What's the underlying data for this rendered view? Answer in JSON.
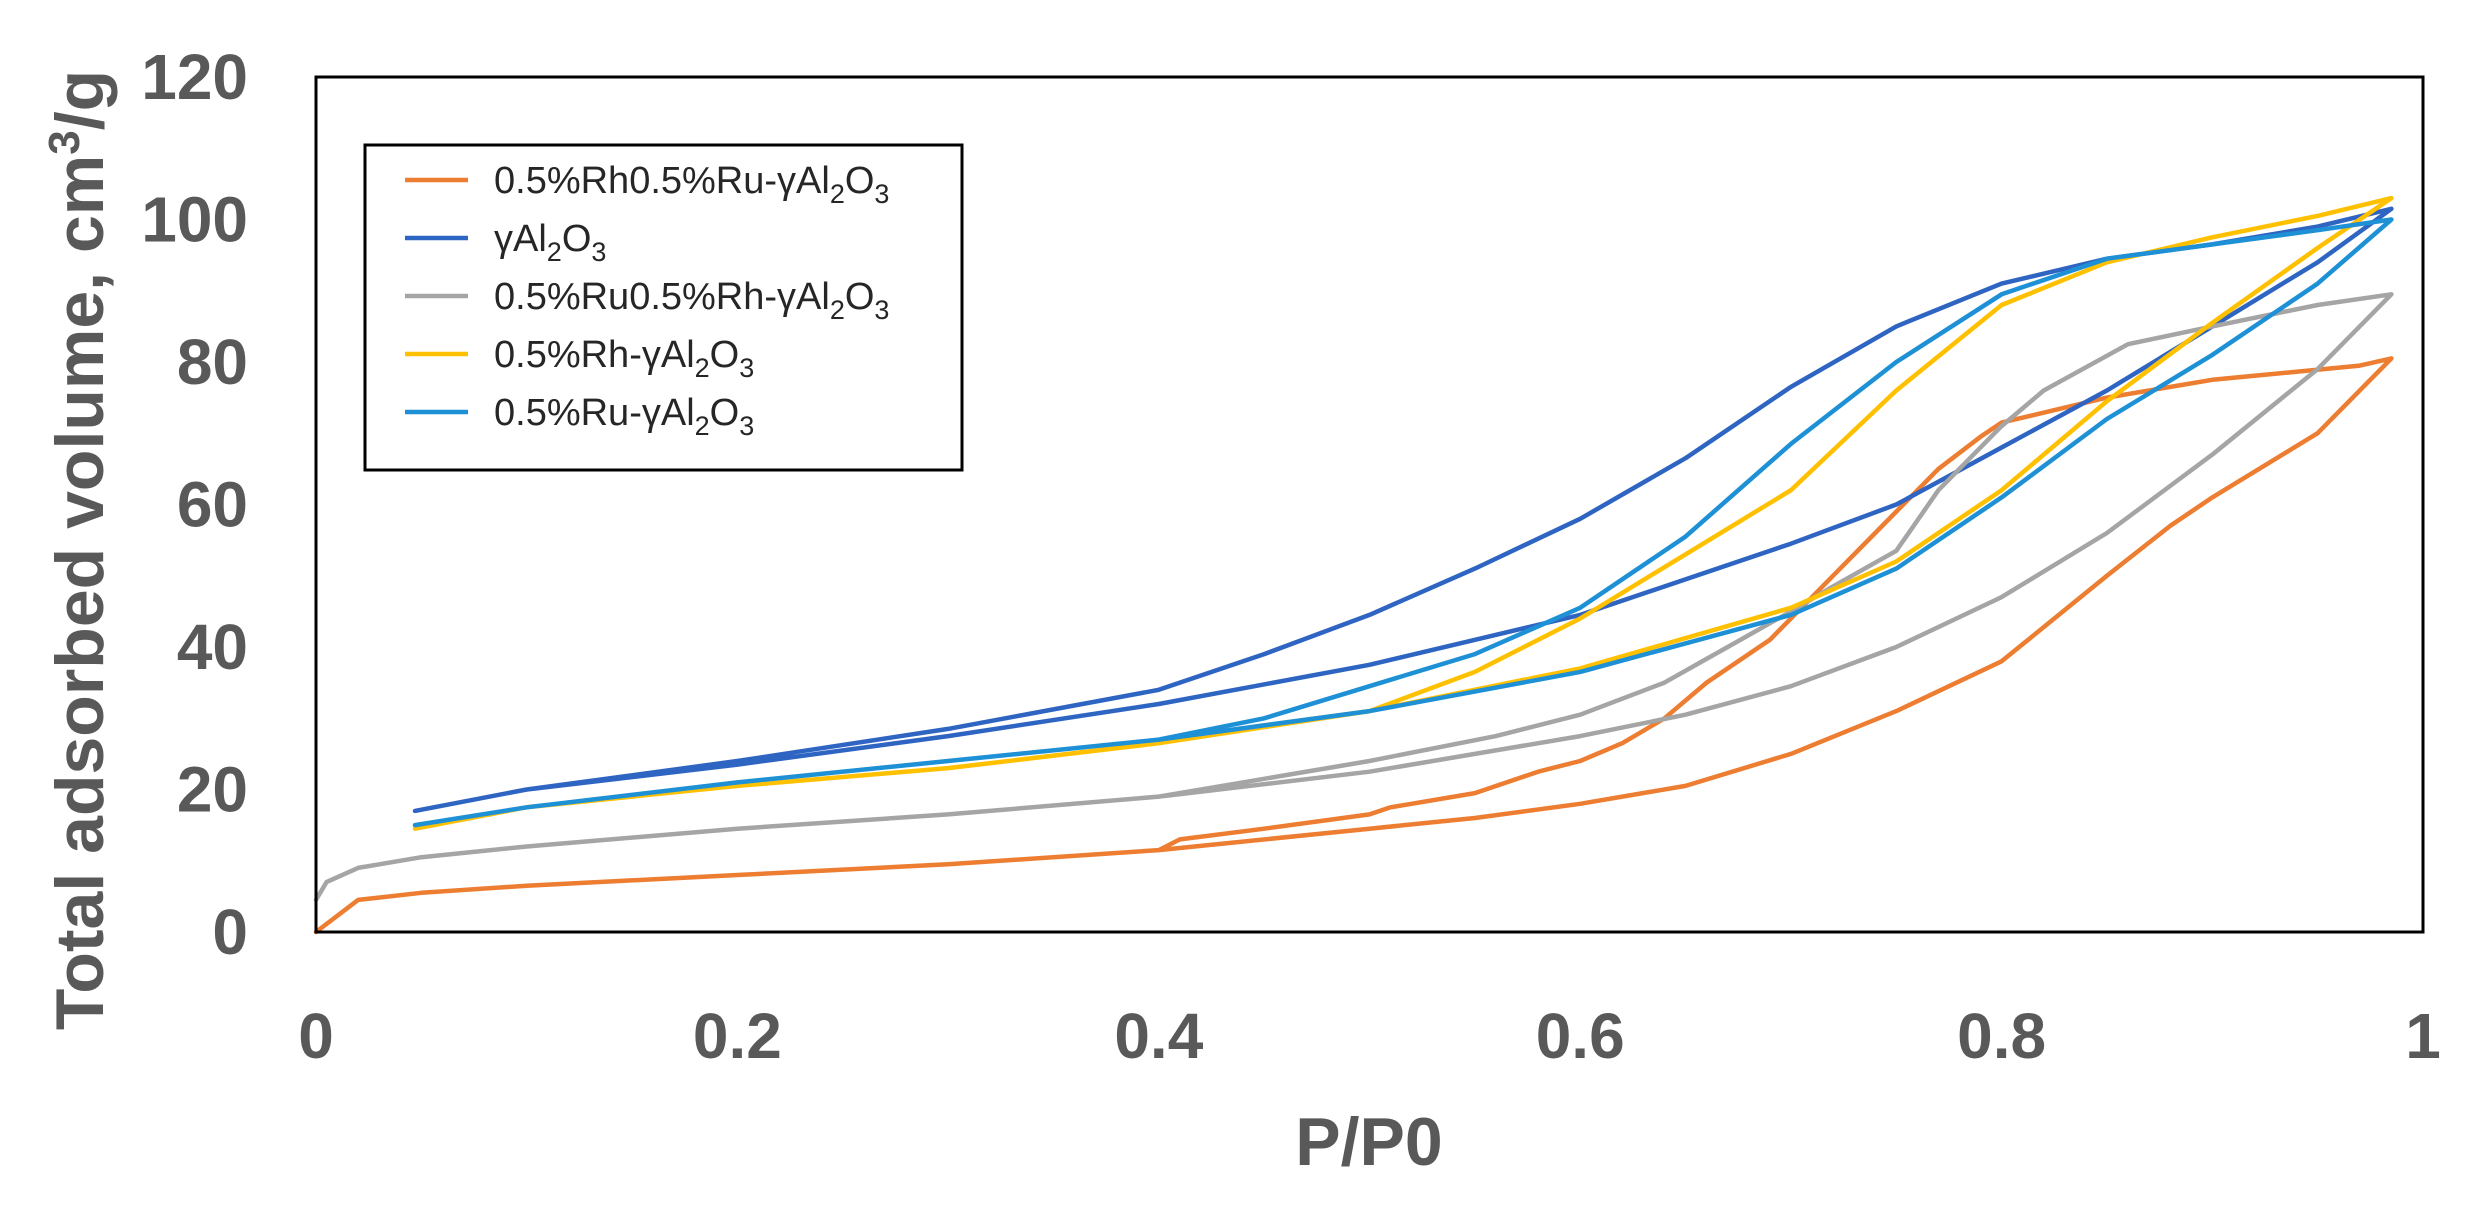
{
  "chart_data": {
    "type": "line",
    "title": "",
    "xlabel": "P/P0",
    "ylabel": "Total adsorbed volume, cm³/g",
    "ylabel_parts": {
      "base": "Total adsorbed volume, cm",
      "sup": "3",
      "tail": "/g"
    },
    "xlim": [
      0,
      1
    ],
    "ylim": [
      0,
      120
    ],
    "x_ticks": [
      0,
      0.2,
      0.4,
      0.6,
      0.8,
      1
    ],
    "x_tick_labels": [
      "0",
      "0.2",
      "0.4",
      "0.6",
      "0.8",
      "1"
    ],
    "y_ticks": [
      0,
      20,
      40,
      60,
      80,
      100,
      120
    ],
    "y_tick_labels": [
      "0",
      "20",
      "40",
      "60",
      "80",
      "100",
      "120"
    ],
    "grid": false,
    "legend_position": "top-left",
    "series": [
      {
        "name": "0.5%Rh0.5%Ru-γAl2O3",
        "label_parts": [
          [
            "0.5%Rh0.5%Ru-γAl",
            ""
          ],
          [
            "2",
            "sub"
          ],
          [
            "O",
            ""
          ],
          [
            "3",
            "sub"
          ]
        ],
        "color": "#ED7D31",
        "x": [
          0,
          0.02,
          0.05,
          0.1,
          0.2,
          0.3,
          0.4,
          0.5,
          0.55,
          0.6,
          0.65,
          0.7,
          0.75,
          0.8,
          0.85,
          0.88,
          0.9,
          0.95,
          0.985,
          0.985,
          0.97,
          0.9,
          0.85,
          0.8,
          0.79,
          0.77,
          0.74,
          0.72,
          0.69,
          0.66,
          0.64,
          0.62,
          0.6,
          0.58,
          0.55,
          0.51,
          0.5,
          0.45,
          0.41,
          0.4
        ],
        "y": [
          0,
          4.5,
          5.5,
          6.5,
          8,
          9.5,
          11.5,
          14.5,
          16,
          18,
          20.5,
          25,
          31,
          38,
          50,
          57,
          61,
          70,
          80.5,
          80.5,
          79.5,
          77.5,
          75,
          71.5,
          69.5,
          65,
          56,
          50,
          41,
          35,
          30,
          26.5,
          24,
          22.5,
          19.5,
          17.5,
          16.5,
          14.5,
          13,
          11.5
        ]
      },
      {
        "name": "γAl2O3",
        "label_parts": [
          [
            "γAl",
            ""
          ],
          [
            "2",
            "sub"
          ],
          [
            "O",
            ""
          ],
          [
            "3",
            "sub"
          ]
        ],
        "color": "#2E64C2",
        "x": [
          0.047,
          0.1,
          0.2,
          0.3,
          0.4,
          0.5,
          0.6,
          0.7,
          0.75,
          0.8,
          0.85,
          0.9,
          0.95,
          0.985,
          0.985,
          0.95,
          0.9,
          0.85,
          0.8,
          0.75,
          0.7,
          0.65,
          0.6,
          0.55,
          0.5,
          0.45,
          0.4,
          0.3,
          0.2,
          0.1,
          0.047
        ],
        "y": [
          17,
          20,
          23.5,
          27.5,
          32,
          37.5,
          44.5,
          54.5,
          60,
          68,
          76,
          85,
          94,
          101.5,
          101.5,
          99,
          96.5,
          94.5,
          91,
          85,
          76.5,
          66.5,
          58,
          51,
          44.5,
          39,
          34,
          28.5,
          24,
          20,
          17
        ]
      },
      {
        "name": "0.5%Ru0.5%Rh-γAl2O3",
        "label_parts": [
          [
            "0.5%Ru0.5%Rh-γAl",
            ""
          ],
          [
            "2",
            "sub"
          ],
          [
            "O",
            ""
          ],
          [
            "3",
            "sub"
          ]
        ],
        "color": "#A5A5A5",
        "x": [
          0,
          0.005,
          0.02,
          0.05,
          0.1,
          0.2,
          0.3,
          0.4,
          0.5,
          0.55,
          0.6,
          0.65,
          0.7,
          0.75,
          0.8,
          0.85,
          0.9,
          0.95,
          0.985,
          0.985,
          0.95,
          0.9,
          0.86,
          0.82,
          0.8,
          0.77,
          0.75,
          0.72,
          0.7,
          0.67,
          0.64,
          0.6,
          0.56,
          0.5,
          0.45,
          0.4
        ],
        "y": [
          4.5,
          7,
          9,
          10.5,
          12,
          14.5,
          16.5,
          19,
          22.5,
          25,
          27.5,
          30.5,
          34.5,
          40,
          47,
          56,
          67,
          79,
          89.5,
          89.5,
          88,
          85,
          82.5,
          76,
          71,
          62,
          53.5,
          48.5,
          45,
          40,
          35,
          30.5,
          27.5,
          24,
          21.5,
          19
        ]
      },
      {
        "name": "0.5%Rh-γAl2O3",
        "label_parts": [
          [
            "0.5%Rh-γAl",
            ""
          ],
          [
            "2",
            "sub"
          ],
          [
            "O",
            ""
          ],
          [
            "3",
            "sub"
          ]
        ],
        "color": "#FFC000",
        "x": [
          0.047,
          0.1,
          0.2,
          0.3,
          0.4,
          0.5,
          0.6,
          0.7,
          0.75,
          0.8,
          0.85,
          0.9,
          0.95,
          0.985,
          0.985,
          0.95,
          0.9,
          0.85,
          0.8,
          0.75,
          0.7,
          0.65,
          0.6,
          0.55,
          0.5,
          0.45,
          0.4
        ],
        "y": [
          14.5,
          17.5,
          20.5,
          23,
          26.5,
          31,
          37,
          45.5,
          52,
          62,
          74.5,
          85.5,
          96,
          103,
          103,
          100.5,
          97.5,
          94,
          88,
          76,
          62,
          53,
          44,
          36.5,
          31,
          29,
          26.5
        ]
      },
      {
        "name": "0.5%Ru-γAl2O3",
        "label_parts": [
          [
            "0.5%Ru-γAl",
            ""
          ],
          [
            "2",
            "sub"
          ],
          [
            "O",
            ""
          ],
          [
            "3",
            "sub"
          ]
        ],
        "color": "#1E90D6",
        "x": [
          0.047,
          0.1,
          0.2,
          0.3,
          0.4,
          0.5,
          0.6,
          0.7,
          0.75,
          0.8,
          0.85,
          0.9,
          0.95,
          0.985,
          0.985,
          0.95,
          0.9,
          0.85,
          0.8,
          0.75,
          0.7,
          0.65,
          0.6,
          0.55,
          0.5,
          0.45,
          0.4
        ],
        "y": [
          15,
          17.5,
          21,
          24,
          27,
          31,
          36.5,
          44.5,
          51,
          61,
          72,
          81,
          91,
          100,
          100,
          98.5,
          96.5,
          94.5,
          89.5,
          80,
          68.5,
          55.5,
          45.5,
          39,
          34.5,
          30,
          27
        ]
      }
    ]
  }
}
